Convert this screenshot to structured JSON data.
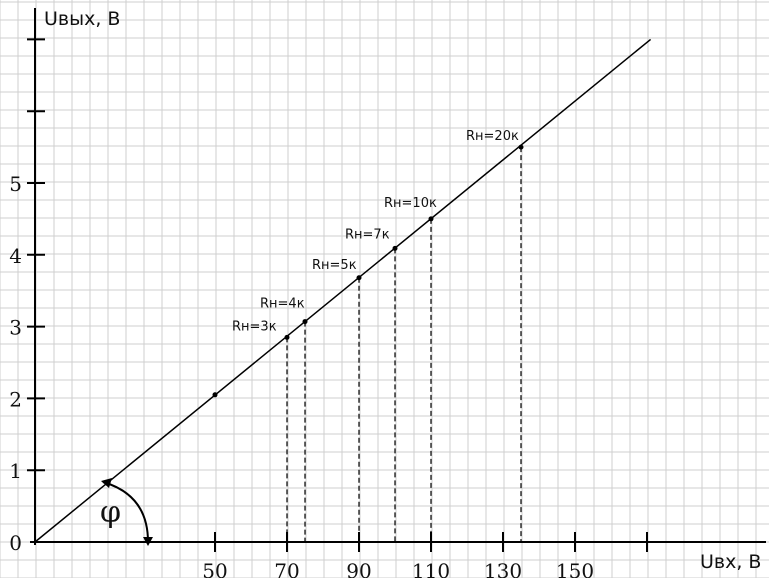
{
  "chart_data": {
    "type": "line",
    "xlabel": "Uвх, В",
    "ylabel": "Uвых, В",
    "xlim": [
      0,
      170
    ],
    "ylim": [
      0,
      7
    ],
    "x_ticks": [
      {
        "value": 50,
        "label": "50"
      },
      {
        "value": 70,
        "label": "70"
      },
      {
        "value": 90,
        "label": "90"
      },
      {
        "value": 110,
        "label": "110"
      },
      {
        "value": 130,
        "label": "130"
      },
      {
        "value": 150,
        "label": "150"
      },
      {
        "value": 170,
        "label": ""
      }
    ],
    "y_ticks": [
      {
        "value": 0,
        "label": "0"
      },
      {
        "value": 1,
        "label": "1"
      },
      {
        "value": 2,
        "label": "2"
      },
      {
        "value": 3,
        "label": "3"
      },
      {
        "value": 4,
        "label": "4"
      },
      {
        "value": 5,
        "label": "5"
      },
      {
        "value": 6,
        "label": ""
      },
      {
        "value": 7,
        "label": ""
      }
    ],
    "grid": true,
    "line": {
      "x": [
        0,
        171
      ],
      "y": [
        0,
        7.0
      ]
    },
    "points": [
      {
        "x": 50,
        "y": 2.05,
        "label": ""
      },
      {
        "x": 70,
        "y": 2.85,
        "label": "Rн=3к"
      },
      {
        "x": 75,
        "y": 3.07,
        "label": "Rн=4к"
      },
      {
        "x": 90,
        "y": 3.68,
        "label": "Rн=5к"
      },
      {
        "x": 100,
        "y": 4.09,
        "label": "Rн=7к"
      },
      {
        "x": 110,
        "y": 4.5,
        "label": "Rн=10к"
      },
      {
        "x": 135,
        "y": 5.5,
        "label": "Rн=20к"
      }
    ],
    "angle_label": "φ"
  }
}
